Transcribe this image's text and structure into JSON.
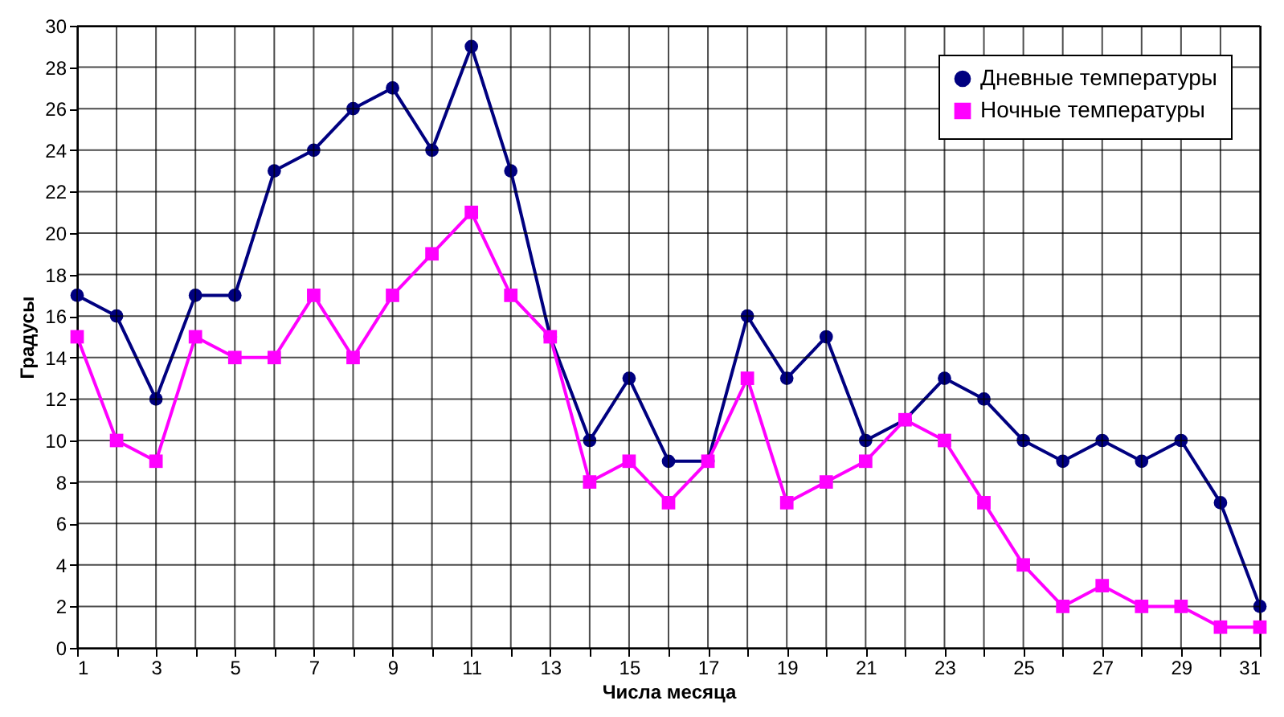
{
  "chart_data": {
    "type": "line",
    "xlabel": "Числа месяца",
    "ylabel": "Градусы",
    "x": [
      1,
      2,
      3,
      4,
      5,
      6,
      7,
      8,
      9,
      10,
      11,
      12,
      13,
      14,
      15,
      16,
      17,
      18,
      19,
      20,
      21,
      22,
      23,
      24,
      25,
      26,
      27,
      28,
      29,
      30,
      31
    ],
    "series": [
      {
        "name": "Дневные температуры",
        "color": "#000080",
        "marker": "circle",
        "values": [
          17,
          16,
          12,
          17,
          17,
          23,
          24,
          26,
          27,
          24,
          29,
          23,
          15,
          10,
          13,
          9,
          9,
          16,
          13,
          15,
          10,
          11,
          13,
          12,
          10,
          9,
          10,
          9,
          10,
          7,
          2
        ]
      },
      {
        "name": "Ночные температуры",
        "color": "#ff00ff",
        "marker": "square",
        "values": [
          15,
          10,
          9,
          15,
          14,
          14,
          17,
          14,
          17,
          19,
          21,
          17,
          15,
          8,
          9,
          7,
          9,
          13,
          7,
          8,
          9,
          11,
          10,
          7,
          4,
          2,
          3,
          2,
          2,
          1,
          1
        ]
      }
    ],
    "xlim": [
      1,
      31
    ],
    "xticks": [
      1,
      {
        "value": 2,
        "label": null
      },
      3,
      {
        "value": 4,
        "label": null
      },
      5,
      {
        "value": 6,
        "label": null
      },
      7,
      {
        "value": 8,
        "label": null
      },
      9,
      {
        "value": 10,
        "label": null
      },
      11,
      {
        "value": 12,
        "label": null
      },
      13,
      {
        "value": 14,
        "label": null
      },
      15,
      {
        "value": 16,
        "label": null
      },
      17,
      {
        "value": 18,
        "label": null
      },
      19,
      {
        "value": 20,
        "label": null
      },
      21,
      {
        "value": 22,
        "label": null
      },
      23,
      {
        "value": 24,
        "label": null
      },
      25,
      {
        "value": 26,
        "label": null
      },
      27,
      {
        "value": 28,
        "label": null
      },
      29,
      {
        "value": 30,
        "label": null
      },
      31
    ],
    "ylim": [
      0,
      30
    ],
    "yticks": [
      0,
      2,
      4,
      6,
      8,
      10,
      12,
      14,
      16,
      18,
      20,
      22,
      24,
      26,
      28,
      30
    ],
    "grid": true,
    "legend": "top right",
    "line_style": "solid"
  }
}
